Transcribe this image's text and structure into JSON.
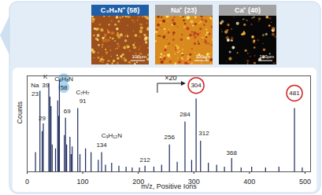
{
  "panels": [
    {
      "label": "C₃H₈N⁺ (58)",
      "scale_bar": "100μm",
      "color": "#1f5fa8"
    },
    {
      "label": "Na⁺ (23)",
      "scale_bar": "100μm",
      "color": "#a3a3a3"
    },
    {
      "label": "Ca⁺ (40)",
      "scale_bar": "100μm",
      "color": "#a3a3a3"
    }
  ],
  "chart_data": {
    "type": "stick",
    "x_label": "m/z, Positive Ions",
    "y_label": "Counts",
    "color": "#1c2a5c",
    "x": [
      15,
      23,
      27,
      29,
      39,
      41,
      43,
      45,
      51,
      55,
      57,
      58,
      67,
      69,
      71,
      77,
      79,
      81,
      91,
      95,
      105,
      115,
      128,
      134,
      141,
      152,
      165,
      178,
      189,
      202,
      212,
      228,
      242,
      256,
      270,
      284,
      296,
      304,
      312,
      326,
      341,
      355,
      368,
      385,
      404,
      429,
      453,
      481,
      495
    ],
    "values": [
      20,
      84,
      42,
      50,
      92,
      78,
      68,
      28,
      24,
      74,
      58,
      96,
      38,
      56,
      28,
      36,
      18,
      26,
      66,
      18,
      24,
      20,
      12,
      20,
      7,
      9,
      6,
      5,
      4,
      4,
      6,
      5,
      7,
      28,
      10,
      52,
      12,
      76,
      32,
      9,
      7,
      5,
      14,
      4,
      5,
      4,
      5,
      66,
      4
    ],
    "xlim": [
      0,
      510
    ],
    "xticks": [
      0,
      100,
      200,
      300,
      400,
      500
    ],
    "ylim": [
      0,
      100
    ],
    "tick_labels": "x",
    "annotations": [
      {
        "text": "Na",
        "x": 14,
        "y": 90
      },
      {
        "text": "23",
        "x": 14,
        "y": 81
      },
      {
        "text": "K",
        "x": 33,
        "y": 99
      },
      {
        "text": "39",
        "x": 33,
        "y": 90
      },
      {
        "text": "C₃H₈N",
        "x": 66,
        "y": 97,
        "marker": "blob",
        "color": "#a9d4f0"
      },
      {
        "text": "58",
        "x": 66,
        "y": 88,
        "marker": "blob",
        "color": "#a9d4f0"
      },
      {
        "text": "29",
        "x": 27,
        "y": 56
      },
      {
        "text": "69",
        "x": 72,
        "y": 63
      },
      {
        "text": "C₇H₇",
        "x": 100,
        "y": 83
      },
      {
        "text": "91",
        "x": 100,
        "y": 74
      },
      {
        "text": "C₉H₁₂N",
        "x": 152,
        "y": 38
      },
      {
        "text": "134",
        "x": 134,
        "y": 28
      },
      {
        "text": "212",
        "x": 212,
        "y": 12
      },
      {
        "text": "256",
        "x": 256,
        "y": 36
      },
      {
        "text": "284",
        "x": 284,
        "y": 60
      },
      {
        "text": "304",
        "x": 304,
        "y": 90,
        "marker": "ring",
        "color": "#d62728"
      },
      {
        "text": "312",
        "x": 318,
        "y": 40
      },
      {
        "text": "368",
        "x": 368,
        "y": 20
      },
      {
        "text": "481",
        "x": 481,
        "y": 82,
        "marker": "ring",
        "color": "#d62728"
      }
    ],
    "magnification": {
      "label": "×20",
      "start": 235
    }
  }
}
